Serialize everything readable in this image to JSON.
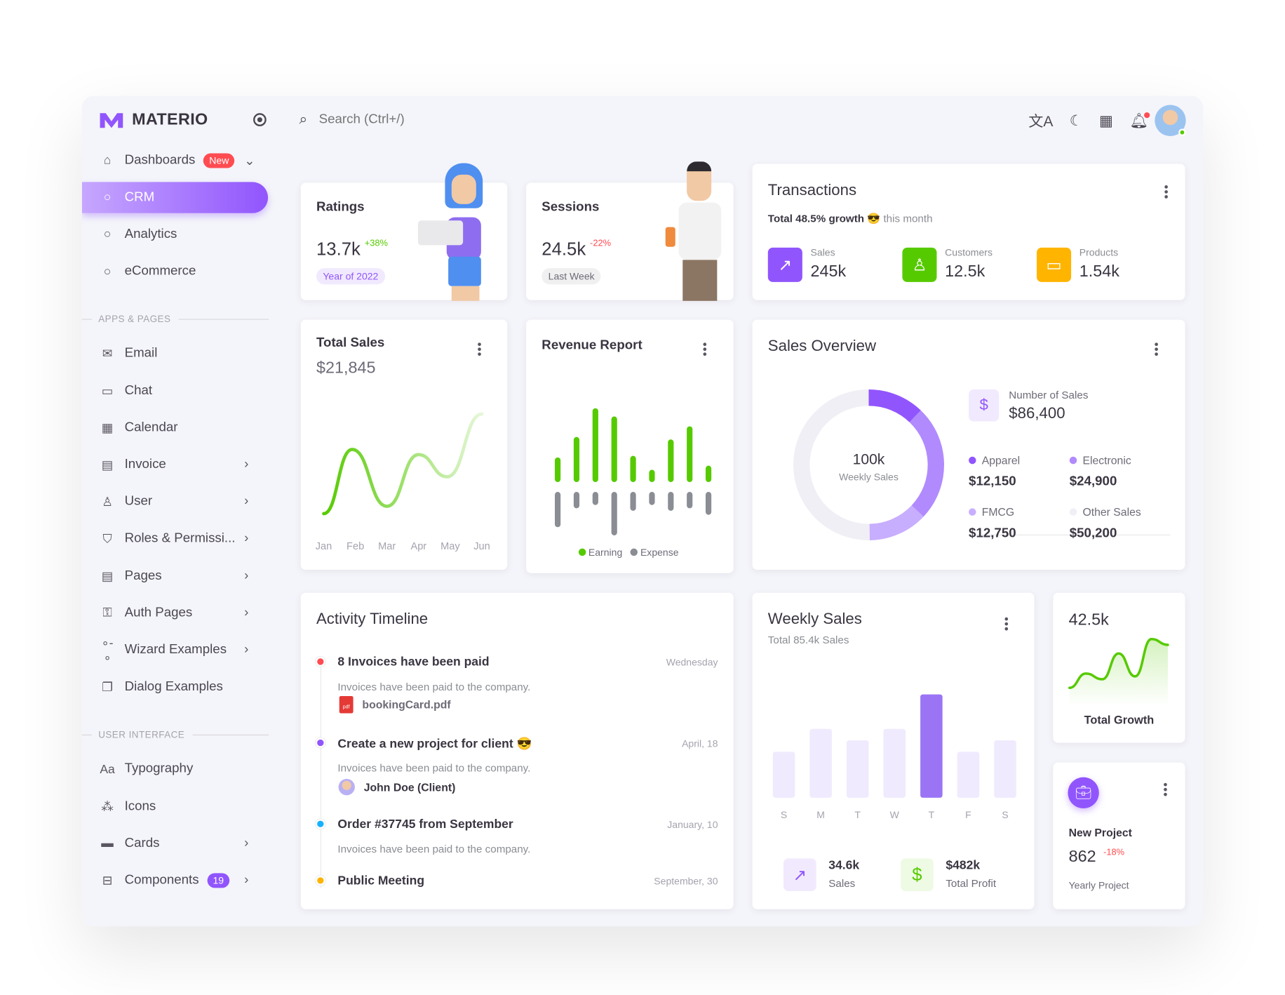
{
  "brand": {
    "name": "MATERIO",
    "accent": "#9155fd"
  },
  "header": {
    "search_placeholder": "Search (Ctrl+/)",
    "icons": [
      "translate-icon",
      "moon-icon",
      "grid-icon",
      "bell-icon"
    ]
  },
  "sidebar": {
    "items": [
      {
        "label": "Dashboards",
        "icon": "⌂",
        "badge": "New",
        "badge_color": "#ff4c51",
        "chev": "⌄",
        "name": "dashboards"
      },
      {
        "label": "CRM",
        "icon": "○",
        "active": true,
        "name": "crm"
      },
      {
        "label": "Analytics",
        "icon": "○",
        "name": "analytics"
      },
      {
        "label": "eCommerce",
        "icon": "○",
        "name": "ecommerce"
      },
      {
        "section": "APPS & PAGES"
      },
      {
        "label": "Email",
        "icon": "✉",
        "name": "email"
      },
      {
        "label": "Chat",
        "icon": "▭",
        "name": "chat"
      },
      {
        "label": "Calendar",
        "icon": "▦",
        "name": "calendar"
      },
      {
        "label": "Invoice",
        "icon": "▤",
        "chev": "›",
        "name": "invoice"
      },
      {
        "label": "User",
        "icon": "♙",
        "chev": "›",
        "name": "user"
      },
      {
        "label": "Roles & Permissi...",
        "icon": "⛉",
        "chev": "›",
        "name": "roles"
      },
      {
        "label": "Pages",
        "icon": "▤",
        "chev": "›",
        "name": "pages"
      },
      {
        "label": "Auth Pages",
        "icon": "⚿",
        "chev": "›",
        "name": "auth-pages"
      },
      {
        "label": "Wizard Examples",
        "icon": "∘-∘",
        "chev": "›",
        "name": "wizard-examples"
      },
      {
        "label": "Dialog Examples",
        "icon": "❐",
        "name": "dialog-examples"
      },
      {
        "section": "USER INTERFACE"
      },
      {
        "label": "Typography",
        "icon": "Aa",
        "name": "typography"
      },
      {
        "label": "Icons",
        "icon": "⁂",
        "name": "icons"
      },
      {
        "label": "Cards",
        "icon": "▬",
        "chev": "›",
        "name": "cards"
      },
      {
        "label": "Components",
        "icon": "⊟",
        "badge": "19",
        "badge_color": "#9155fd",
        "chev": "›",
        "name": "components"
      }
    ]
  },
  "ratings": {
    "title": "Ratings",
    "value": "13.7k",
    "change": "+38%",
    "chip": "Year of 2022"
  },
  "sessions": {
    "title": "Sessions",
    "value": "24.5k",
    "change": "-22%",
    "chip": "Last Week"
  },
  "transactions": {
    "title": "Transactions",
    "growth": "Total 48.5% growth",
    "emoji": "😎",
    "suffix": "this month",
    "stats": [
      {
        "label": "Sales",
        "value": "245k",
        "color": "#9155fd",
        "icon": "trending-up-icon"
      },
      {
        "label": "Customers",
        "value": "12.5k",
        "color": "#56ca00",
        "icon": "account-icon"
      },
      {
        "label": "Products",
        "value": "1.54k",
        "color": "#ffb400",
        "icon": "devices-icon"
      }
    ]
  },
  "total_sales": {
    "title": "Total Sales",
    "value": "$21,845"
  },
  "revenue": {
    "title": "Revenue Report",
    "legend": [
      "Earning",
      "Expense"
    ]
  },
  "sales_overview": {
    "title": "Sales Overview",
    "center_value": "100k",
    "center_label": "Weekly Sales",
    "number_label": "Number of Sales",
    "number_value": "$86,400"
  },
  "activity": {
    "title": "Activity Timeline",
    "items": [
      {
        "title": "8 Invoices have been paid",
        "date": "Wednesday",
        "desc": "Invoices have been paid to the company.",
        "attach": "bookingCard.pdf",
        "color": "#ff4c51"
      },
      {
        "title": "Create a new project for client 😎",
        "date": "April, 18",
        "desc": "Invoices have been paid to the company.",
        "person": "John Doe (Client)",
        "color": "#9155fd"
      },
      {
        "title": "Order #37745 from September",
        "date": "January, 10",
        "desc": "Invoices have been paid to the company.",
        "color": "#16b1ff"
      },
      {
        "title": "Public Meeting",
        "date": "September, 30",
        "color": "#ffb400"
      }
    ]
  },
  "weekly_sales": {
    "title": "Weekly Sales",
    "subtitle": "Total 85.4k Sales",
    "stats": [
      {
        "value": "34.6k",
        "label": "Sales"
      },
      {
        "value": "$482k",
        "label": "Total Profit"
      }
    ]
  },
  "total_growth": {
    "value": "42.5k",
    "label": "Total Growth"
  },
  "new_project": {
    "title": "New Project",
    "value": "862",
    "change": "-18%",
    "label": "Yearly Project"
  },
  "chart_data": [
    {
      "type": "line",
      "title": "Total Sales",
      "categories": [
        "Jan",
        "Feb",
        "Mar",
        "Apr",
        "May",
        "Jun"
      ],
      "x": [
        0,
        0.9,
        2,
        3,
        3.9,
        5
      ],
      "values": [
        15,
        102,
        25,
        95,
        65,
        150
      ],
      "color": "#56ca00"
    },
    {
      "type": "bar",
      "title": "Revenue Report",
      "series": [
        {
          "name": "Earning",
          "values": [
            30,
            55,
            90,
            80,
            32,
            15,
            52,
            68,
            20
          ],
          "color": "#56ca00"
        },
        {
          "name": "Expense",
          "values": [
            43,
            20,
            16,
            53,
            23,
            16,
            23,
            20,
            28
          ],
          "color": "#8a8d93"
        }
      ]
    },
    {
      "type": "pie",
      "title": "Sales Overview",
      "categories": [
        "Apparel",
        "Electronic",
        "FMCG",
        "Other Sales"
      ],
      "values": [
        12150,
        24900,
        12750,
        50200
      ],
      "labels": [
        "$12,150",
        "$24,900",
        "$12,750",
        "$50,200"
      ],
      "colors": [
        "#9155fd",
        "#b18afe",
        "#c8aefe",
        "#f0eff5"
      ]
    },
    {
      "type": "bar",
      "title": "Weekly Sales",
      "categories": [
        "S",
        "M",
        "T",
        "W",
        "T",
        "F",
        "S"
      ],
      "values": [
        40,
        60,
        50,
        60,
        90,
        40,
        50
      ],
      "highlight": 4,
      "colors": {
        "bar": "#f0eafe",
        "highlight": "#9b74f5"
      }
    },
    {
      "type": "area",
      "title": "Total Growth",
      "values": [
        10,
        35,
        25,
        70,
        30,
        95,
        85
      ],
      "color": "#56ca00"
    }
  ]
}
